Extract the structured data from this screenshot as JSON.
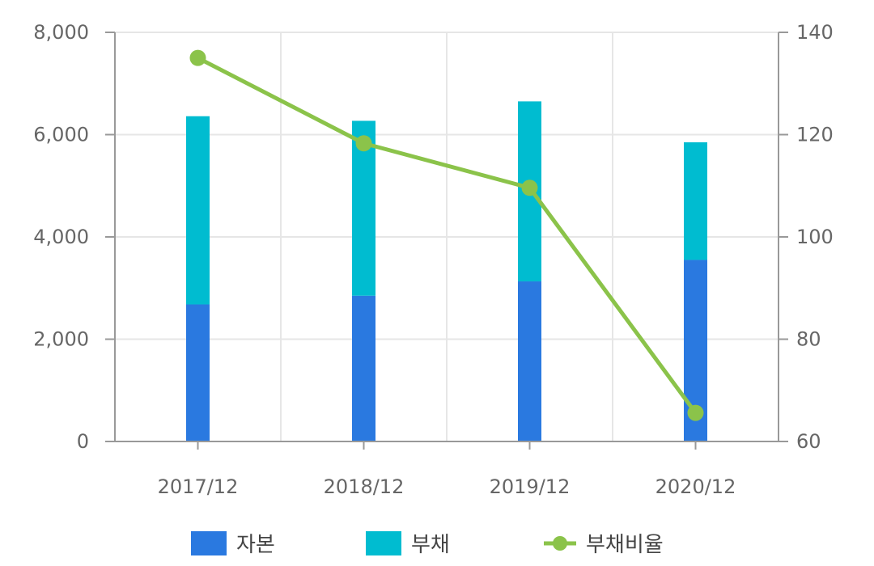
{
  "chart_data": {
    "type": "bar",
    "stacked": true,
    "categories": [
      "2017/12",
      "2018/12",
      "2019/12",
      "2020/12"
    ],
    "series": [
      {
        "name": "자본",
        "type": "bar",
        "axis": "left",
        "color": "#2a79e0",
        "values": [
          2680,
          2850,
          3130,
          3550
        ]
      },
      {
        "name": "부채",
        "type": "bar",
        "axis": "left",
        "color": "#00bcd0",
        "values": [
          3680,
          3420,
          3520,
          2300
        ]
      },
      {
        "name": "부채비율",
        "type": "line",
        "axis": "right",
        "color": "#8bc34a",
        "values": [
          135,
          118.3,
          109.6,
          65.6
        ]
      }
    ],
    "y_left": {
      "min": 0,
      "max": 8000,
      "ticks": [
        "0",
        "2,000",
        "4,000",
        "6,000",
        "8,000"
      ]
    },
    "y_right": {
      "min": 60,
      "max": 140,
      "ticks": [
        "60",
        "80",
        "100",
        "120",
        "140"
      ]
    },
    "grid": true,
    "legend_position": "bottom",
    "title": "",
    "xlabel": "",
    "ylabel": ""
  }
}
